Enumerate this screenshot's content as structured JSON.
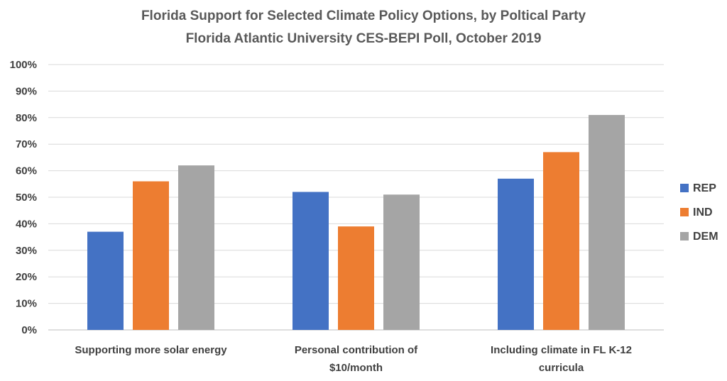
{
  "chart_data": {
    "type": "bar",
    "title": "Florida Support for Selected Climate Policy Options, by Poltical Party",
    "subtitle": "Florida Atlantic University CES-BEPI Poll, October 2019",
    "categories": [
      [
        "Supporting more solar energy"
      ],
      [
        "Personal contribution of",
        "$10/month"
      ],
      [
        "Including climate in FL K-12",
        "curricula"
      ]
    ],
    "series": [
      {
        "name": "REP",
        "values": [
          37,
          52,
          57
        ],
        "color": "#4472C4"
      },
      {
        "name": "IND",
        "values": [
          56,
          39,
          67
        ],
        "color": "#ED7D31"
      },
      {
        "name": "DEM",
        "values": [
          62,
          51,
          81
        ],
        "color": "#A5A5A5"
      }
    ],
    "yticks": [
      "0%",
      "10%",
      "20%",
      "30%",
      "40%",
      "50%",
      "60%",
      "70%",
      "80%",
      "90%",
      "100%"
    ],
    "ylim": [
      0,
      100
    ],
    "grid": true,
    "legend": "right"
  }
}
